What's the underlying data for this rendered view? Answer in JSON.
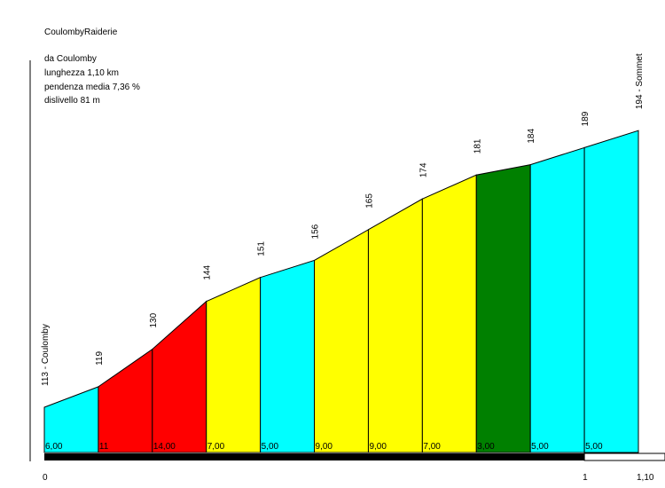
{
  "header": {
    "title": "CoulombyRaiderie",
    "start_label": "da Coulomby",
    "length_label": "lunghezza 1,10 km",
    "gradient_label": "pendenza media 7,36 %",
    "climb_label": "dislivello 81 m"
  },
  "chart_data": {
    "type": "area",
    "title": "CoulombyRaiderie",
    "xlabel": "",
    "ylabel": "",
    "x": [
      0,
      0.1,
      0.2,
      0.3,
      0.4,
      0.5,
      0.6,
      0.7,
      0.8,
      0.9,
      1.0,
      1.1
    ],
    "elevations": [
      113,
      119,
      130,
      144,
      151,
      156,
      165,
      174,
      181,
      184,
      189,
      194
    ],
    "elevation_labels": [
      "113 - Coulomby",
      "119",
      "130",
      "144",
      "151",
      "156",
      "165",
      "174",
      "181",
      "184",
      "189",
      "194 - Sommet"
    ],
    "segment_gradients": [
      "6,00",
      "11",
      "14,00",
      "7,00",
      "5,00",
      "9,00",
      "9,00",
      "7,00",
      "3,00",
      "5,00",
      "5,00"
    ],
    "segment_colors": [
      "#00ffff",
      "#ff0000",
      "#ff0000",
      "#ffff00",
      "#00ffff",
      "#ffff00",
      "#ffff00",
      "#ffff00",
      "#008000",
      "#00ffff",
      "#00ffff"
    ],
    "x_tick_labels": [
      {
        "value": 0,
        "label": "0"
      },
      {
        "value": 1.0,
        "label": "1"
      },
      {
        "value": 1.1,
        "label": "1,10"
      }
    ],
    "distance_bar": {
      "filled_km": 1.0,
      "total_km": 1.1,
      "fill_color": "#000000",
      "empty_color": "#ffffff"
    }
  }
}
